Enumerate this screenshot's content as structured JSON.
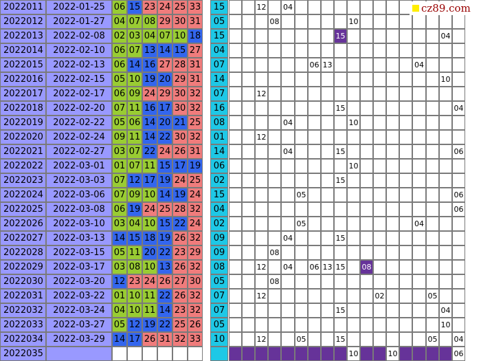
{
  "logo": {
    "text": "cz89.com"
  },
  "colors": {
    "zone1": "#99cc33",
    "zone2": "#3366ee",
    "zone3": "#f07c7c",
    "blue_ball": "#1ec8e6",
    "highlight": "#663399",
    "issue_bg": "#9999ff"
  },
  "table": {
    "columns_in_chart": 18,
    "rows": [
      {
        "issue": "2022011",
        "date": "2022-01-25",
        "reds": [
          "06",
          "15",
          "23",
          "24",
          "25",
          "33"
        ],
        "blue": "15",
        "chart": [
          null,
          null,
          "12",
          null,
          "04",
          null,
          null,
          null,
          null,
          null,
          null,
          null,
          null,
          null,
          null,
          null,
          null,
          null
        ]
      },
      {
        "issue": "2022012",
        "date": "2022-01-27",
        "reds": [
          "04",
          "07",
          "08",
          "29",
          "30",
          "31"
        ],
        "blue": "05",
        "chart": [
          null,
          null,
          null,
          "08",
          null,
          null,
          null,
          null,
          null,
          "10",
          null,
          null,
          null,
          null,
          null,
          null,
          null,
          null
        ]
      },
      {
        "issue": "2022013",
        "date": "2022-02-08",
        "reds": [
          "02",
          "03",
          "04",
          "07",
          "10",
          "18"
        ],
        "blue": "15",
        "chart": [
          null,
          null,
          null,
          null,
          null,
          null,
          null,
          null,
          "15h",
          null,
          null,
          null,
          null,
          null,
          null,
          null,
          "04",
          null
        ]
      },
      {
        "issue": "2022014",
        "date": "2022-02-10",
        "reds": [
          "06",
          "07",
          "13",
          "14",
          "15",
          "27"
        ],
        "blue": "04",
        "chart": [
          null,
          null,
          null,
          null,
          null,
          null,
          null,
          null,
          null,
          null,
          null,
          null,
          null,
          null,
          null,
          null,
          null,
          null
        ]
      },
      {
        "issue": "2022015",
        "date": "2022-02-13",
        "reds": [
          "06",
          "14",
          "16",
          "27",
          "28",
          "31"
        ],
        "blue": "07",
        "chart": [
          null,
          null,
          null,
          null,
          null,
          null,
          "06",
          "13",
          null,
          null,
          null,
          null,
          null,
          null,
          "04",
          null,
          null,
          null
        ]
      },
      {
        "issue": "2022016",
        "date": "2022-02-15",
        "reds": [
          "05",
          "10",
          "19",
          "20",
          "29",
          "31"
        ],
        "blue": "14",
        "chart": [
          null,
          null,
          null,
          null,
          null,
          null,
          null,
          null,
          null,
          null,
          null,
          null,
          null,
          null,
          null,
          null,
          "10",
          null
        ]
      },
      {
        "issue": "2022017",
        "date": "2022-02-17",
        "reds": [
          "06",
          "09",
          "24",
          "29",
          "30",
          "32"
        ],
        "blue": "07",
        "chart": [
          null,
          null,
          "12",
          null,
          null,
          null,
          null,
          null,
          null,
          null,
          null,
          null,
          null,
          null,
          null,
          null,
          null,
          null
        ]
      },
      {
        "issue": "2022018",
        "date": "2022-02-20",
        "reds": [
          "07",
          "11",
          "16",
          "17",
          "30",
          "32"
        ],
        "blue": "16",
        "chart": [
          null,
          null,
          null,
          null,
          null,
          null,
          null,
          null,
          "15",
          null,
          null,
          null,
          null,
          null,
          null,
          null,
          null,
          "04"
        ]
      },
      {
        "issue": "2022019",
        "date": "2022-02-22",
        "reds": [
          "05",
          "06",
          "14",
          "20",
          "21",
          "25"
        ],
        "blue": "08",
        "chart": [
          null,
          null,
          null,
          null,
          "04",
          null,
          null,
          null,
          null,
          "10",
          null,
          null,
          null,
          null,
          null,
          null,
          null,
          null
        ]
      },
      {
        "issue": "2022020",
        "date": "2022-02-24",
        "reds": [
          "09",
          "11",
          "14",
          "22",
          "30",
          "32"
        ],
        "blue": "01",
        "chart": [
          null,
          null,
          "12",
          null,
          null,
          null,
          null,
          null,
          null,
          null,
          null,
          null,
          null,
          null,
          null,
          null,
          null,
          null
        ]
      },
      {
        "issue": "2022021",
        "date": "2022-02-27",
        "reds": [
          "03",
          "07",
          "22",
          "24",
          "26",
          "31"
        ],
        "blue": "14",
        "chart": [
          null,
          null,
          null,
          null,
          "04",
          null,
          null,
          null,
          "15",
          null,
          null,
          null,
          null,
          null,
          null,
          null,
          null,
          "06"
        ]
      },
      {
        "issue": "2022022",
        "date": "2022-03-01",
        "reds": [
          "01",
          "07",
          "11",
          "15",
          "17",
          "19"
        ],
        "blue": "06",
        "chart": [
          null,
          null,
          null,
          null,
          null,
          null,
          null,
          null,
          null,
          "10",
          null,
          null,
          null,
          null,
          null,
          null,
          null,
          null
        ]
      },
      {
        "issue": "2022023",
        "date": "2022-03-03",
        "reds": [
          "07",
          "12",
          "17",
          "19",
          "24",
          "25"
        ],
        "blue": "02",
        "chart": [
          null,
          null,
          null,
          null,
          null,
          null,
          null,
          null,
          "15",
          null,
          null,
          null,
          null,
          null,
          null,
          null,
          null,
          null
        ]
      },
      {
        "issue": "2022024",
        "date": "2022-03-06",
        "reds": [
          "07",
          "09",
          "10",
          "14",
          "19",
          "24"
        ],
        "blue": "15",
        "chart": [
          null,
          null,
          null,
          null,
          null,
          "05",
          null,
          null,
          null,
          null,
          null,
          null,
          null,
          null,
          null,
          null,
          null,
          "06"
        ]
      },
      {
        "issue": "2022025",
        "date": "2022-03-08",
        "reds": [
          "06",
          "19",
          "24",
          "25",
          "28",
          "32"
        ],
        "blue": "04",
        "chart": [
          null,
          null,
          null,
          null,
          null,
          null,
          null,
          null,
          null,
          null,
          null,
          null,
          null,
          null,
          null,
          null,
          null,
          "06"
        ]
      },
      {
        "issue": "2022026",
        "date": "2022-03-10",
        "reds": [
          "03",
          "04",
          "10",
          "15",
          "22",
          "24"
        ],
        "blue": "02",
        "chart": [
          null,
          null,
          null,
          null,
          null,
          "05",
          null,
          null,
          null,
          null,
          null,
          null,
          null,
          null,
          "04",
          null,
          null,
          null
        ]
      },
      {
        "issue": "2022027",
        "date": "2022-03-13",
        "reds": [
          "14",
          "15",
          "18",
          "19",
          "26",
          "32"
        ],
        "blue": "09",
        "chart": [
          null,
          null,
          null,
          null,
          "04",
          null,
          null,
          null,
          "15",
          null,
          null,
          null,
          null,
          null,
          null,
          null,
          null,
          null
        ]
      },
      {
        "issue": "2022028",
        "date": "2022-03-15",
        "reds": [
          "05",
          "11",
          "20",
          "22",
          "23",
          "29"
        ],
        "blue": "09",
        "chart": [
          null,
          null,
          null,
          "08",
          null,
          null,
          null,
          null,
          null,
          null,
          null,
          null,
          null,
          null,
          null,
          null,
          null,
          null
        ]
      },
      {
        "issue": "2022029",
        "date": "2022-03-17",
        "reds": [
          "03",
          "08",
          "10",
          "13",
          "26",
          "32"
        ],
        "blue": "08",
        "chart": [
          null,
          null,
          "12",
          null,
          "04",
          null,
          "06",
          "13",
          "15",
          null,
          "08h",
          null,
          null,
          null,
          null,
          null,
          null,
          null
        ]
      },
      {
        "issue": "2022030",
        "date": "2022-03-20",
        "reds": [
          "12",
          "23",
          "24",
          "26",
          "27",
          "30"
        ],
        "blue": "05",
        "chart": [
          null,
          null,
          null,
          "08",
          null,
          null,
          null,
          null,
          null,
          null,
          null,
          null,
          null,
          null,
          null,
          null,
          null,
          null
        ]
      },
      {
        "issue": "2022031",
        "date": "2022-03-22",
        "reds": [
          "01",
          "10",
          "11",
          "22",
          "26",
          "32"
        ],
        "blue": "07",
        "chart": [
          null,
          null,
          "12",
          null,
          null,
          null,
          null,
          null,
          null,
          null,
          null,
          "02",
          null,
          null,
          null,
          "05",
          null,
          null
        ]
      },
      {
        "issue": "2022032",
        "date": "2022-03-24",
        "reds": [
          "04",
          "10",
          "11",
          "14",
          "23",
          "32"
        ],
        "blue": "07",
        "chart": [
          null,
          null,
          null,
          null,
          null,
          null,
          null,
          null,
          "15",
          null,
          null,
          null,
          null,
          null,
          null,
          null,
          "04",
          null
        ]
      },
      {
        "issue": "2022033",
        "date": "2022-03-27",
        "reds": [
          "05",
          "12",
          "19",
          "22",
          "25",
          "26"
        ],
        "blue": "05",
        "chart": [
          null,
          null,
          null,
          null,
          null,
          null,
          null,
          null,
          null,
          null,
          null,
          null,
          null,
          null,
          null,
          null,
          "10",
          null
        ]
      },
      {
        "issue": "2022034",
        "date": "2022-03-29",
        "reds": [
          "14",
          "17",
          "26",
          "31",
          "32",
          "33"
        ],
        "blue": "10",
        "chart": [
          null,
          null,
          "12",
          null,
          null,
          "05",
          null,
          null,
          "15",
          null,
          null,
          null,
          null,
          null,
          null,
          "05",
          null,
          "04"
        ]
      }
    ],
    "last_row": {
      "issue": "2022035",
      "chart": [
        "f",
        "f",
        "f",
        "f",
        "f",
        "f",
        "f",
        "f",
        "f",
        "10f",
        "f",
        "f",
        "10f",
        "f",
        "f",
        "f",
        "f",
        "06"
      ]
    }
  }
}
